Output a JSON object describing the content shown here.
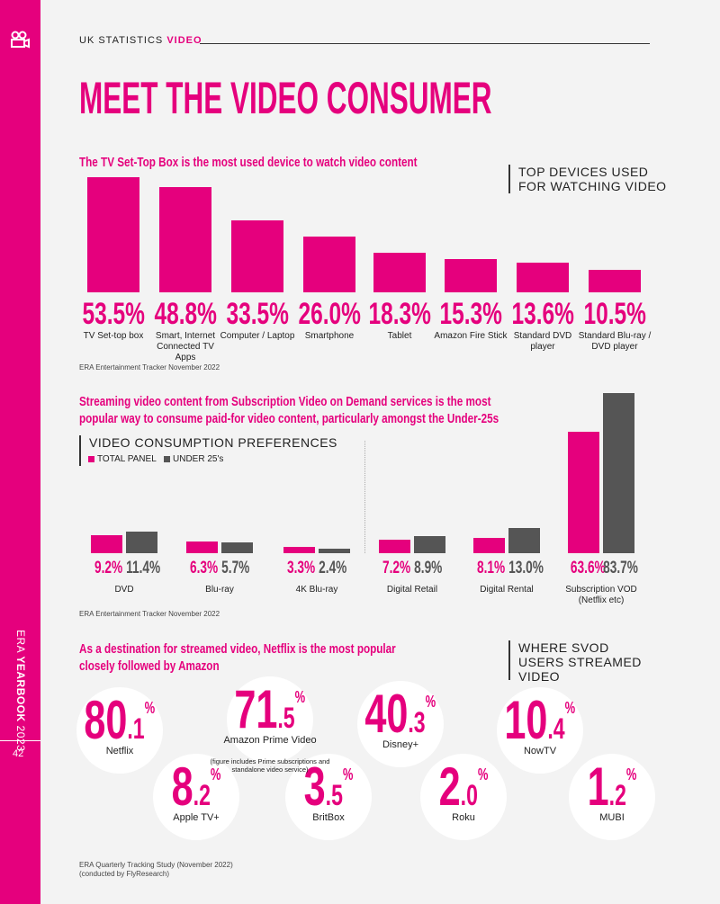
{
  "sidebar": {
    "publication": "ERA",
    "bold": "YEARBOOK",
    "year": "2023",
    "page": "42"
  },
  "header": {
    "section": "UK STATISTICS",
    "topic": "VIDEO",
    "title": "MEET THE VIDEO CONSUMER"
  },
  "chart_data": [
    {
      "type": "bar",
      "title": "The TV Set-Top Box is the most used device to watch video content",
      "heading": "TOP DEVICES USED FOR WATCHING VIDEO",
      "categories": [
        "TV Set-top box",
        "Smart, Internet Connected TV Apps",
        "Computer / Laptop",
        "Smartphone",
        "Tablet",
        "Amazon Fire Stick",
        "Standard DVD player",
        "Standard Blu-ray / DVD player"
      ],
      "values": [
        53.5,
        48.8,
        33.5,
        26.0,
        18.3,
        15.3,
        13.6,
        10.5
      ],
      "value_labels": [
        "53.5%",
        "48.8%",
        "33.5%",
        "26.0%",
        "18.3%",
        "15.3%",
        "13.6%",
        "10.5%"
      ],
      "color": "#e5007d",
      "source": "ERA Entertainment Tracker November 2022"
    },
    {
      "type": "grouped-bar",
      "title": "Streaming video content from Subscription Video on Demand services is the most popular way to consume paid-for video content, particularly amongst the Under-25s",
      "heading": "VIDEO CONSUMPTION PREFERENCES",
      "categories": [
        "DVD",
        "Blu-ray",
        "4K Blu-ray",
        "Digital Retail",
        "Digital Rental",
        "Subscription VOD (Netflix etc)"
      ],
      "series": [
        {
          "name": "TOTAL PANEL",
          "color": "#e5007d",
          "values": [
            9.2,
            6.3,
            3.3,
            7.2,
            8.1,
            63.6
          ],
          "value_labels": [
            "9.2%",
            "6.3%",
            "3.3%",
            "7.2%",
            "8.1%",
            "63.6%"
          ]
        },
        {
          "name": "UNDER 25's",
          "color": "#555555",
          "values": [
            11.4,
            5.7,
            2.4,
            8.9,
            13.0,
            83.7
          ],
          "value_labels": [
            "11.4%",
            "5.7%",
            "2.4%",
            "8.9%",
            "13.0%",
            "83.7%"
          ]
        }
      ],
      "source": "ERA Entertainment Tracker November 2022"
    },
    {
      "type": "circles",
      "title": "As a destination for streamed video, Netflix is the most popular closely followed by Amazon",
      "heading": "WHERE SVOD USERS STREAMED VIDEO",
      "categories": [
        "Netflix",
        "Amazon Prime Video",
        "Disney+",
        "NowTV",
        "Apple TV+",
        "BritBox",
        "Roku",
        "MUBI"
      ],
      "values": [
        80.1,
        71.5,
        40.3,
        10.4,
        8.2,
        3.5,
        2.0,
        1.2
      ],
      "value_labels": [
        "80.1%",
        "71.5%",
        "40.3%",
        "10.4%",
        "8.2%",
        "3.5%",
        "2.0%",
        "1.2%"
      ],
      "annotation": "(figure includes Prime subscriptions and standalone video service)",
      "color": "#e5007d",
      "source": [
        "ERA Quarterly Tracking Study  (November 2022)",
        "(conducted by FlyResearch)"
      ]
    }
  ]
}
